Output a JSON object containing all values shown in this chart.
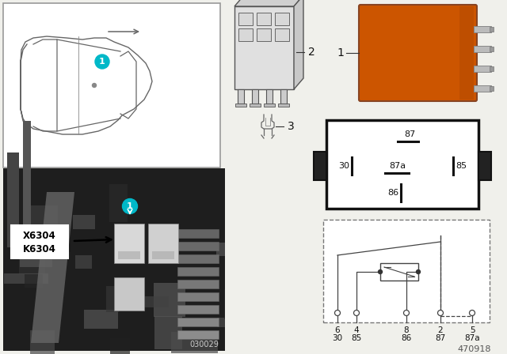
{
  "doc_number": "470918",
  "img_number": "030029",
  "background_color": "#f0f0eb",
  "orange_color": "#cc5500",
  "cyan_color": "#00b8c8",
  "k_label_line1": "K6304",
  "k_label_line2": "X6304",
  "relay_pin_87": "87",
  "relay_pin_30": "30",
  "relay_pin_87a": "87a",
  "relay_pin_85": "85",
  "relay_pin_86": "86",
  "schematic_top": [
    "6",
    "4",
    "8",
    "2",
    "5"
  ],
  "schematic_bot": [
    "30",
    "85",
    "86",
    "87",
    "87a"
  ]
}
